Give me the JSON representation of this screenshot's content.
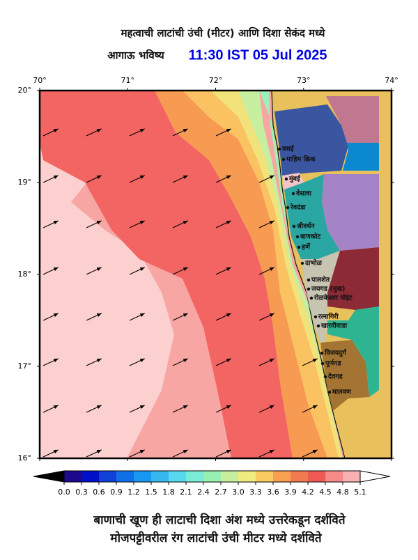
{
  "header": {
    "title": "महत्वाची लाटांची उंची (मीटर) आणि दिशा सेकंद मध्ये",
    "subtitle": "आगाऊ भविष्य",
    "time": "11:30 IST 05 Jul 2025"
  },
  "map": {
    "lon_ticks": [
      {
        "value": 70,
        "label": "70°"
      },
      {
        "value": 71,
        "label": "71°"
      },
      {
        "value": 72,
        "label": "72°"
      },
      {
        "value": 73,
        "label": "73°"
      },
      {
        "value": 74,
        "label": "74°"
      }
    ],
    "lat_ticks": [
      {
        "value": 20,
        "label": "20°"
      },
      {
        "value": 19,
        "label": "19°"
      },
      {
        "value": 18,
        "label": "18°"
      },
      {
        "value": 17,
        "label": "17°"
      },
      {
        "value": 16,
        "label": "16°"
      }
    ],
    "places": [
      "वसई",
      "माहिम क्रिक",
      "मुंबई",
      "वेसावा",
      "रेवदंडा",
      "श्रीवर्धन",
      "बाणकोट",
      "हर्णे",
      "दाभोळ",
      "पालशेत",
      "जयगड (मुख)",
      "रोळकेश्वर पॉइंट",
      "रत्नागिरी",
      "खारवीवाडा",
      "विजयदुर्ग",
      "पूर्णगड",
      "देवगड",
      "मालवण"
    ]
  },
  "colorbar": {
    "ticks": [
      {
        "value": 0,
        "label": "0.0"
      },
      {
        "value": 0.3,
        "label": "0.3"
      },
      {
        "value": 0.6,
        "label": "0.6"
      },
      {
        "value": 0.9,
        "label": "0.9"
      },
      {
        "value": 1.2,
        "label": "1.2"
      },
      {
        "value": 1.5,
        "label": "1.5"
      },
      {
        "value": 1.8,
        "label": "1.8"
      },
      {
        "value": 2.1,
        "label": "2.1"
      },
      {
        "value": 2.4,
        "label": "2.4"
      },
      {
        "value": 2.7,
        "label": "2.7"
      },
      {
        "value": 3.0,
        "label": "3.0"
      },
      {
        "value": 3.3,
        "label": "3.3"
      },
      {
        "value": 3.6,
        "label": "3.6"
      },
      {
        "value": 3.9,
        "label": "3.9"
      },
      {
        "value": 4.2,
        "label": "4.2"
      },
      {
        "value": 4.5,
        "label": "4.5"
      },
      {
        "value": 4.8,
        "label": "4.8"
      },
      {
        "value": 5.1,
        "label": "5.1"
      }
    ],
    "colors": [
      "#1c0a8a",
      "#0010c8",
      "#1040d8",
      "#1070e8",
      "#1898f0",
      "#38b8f0",
      "#58d8f0",
      "#78ecd8",
      "#98f0b0",
      "#c8f09c",
      "#f0ec80",
      "#f8cc60",
      "#f8a050",
      "#f27a50",
      "#f05a55",
      "#f68a88",
      "#f8b0b0"
    ]
  },
  "footer": {
    "line1": "बाणाची खूण ही लाटाची दिशा अंश मध्ये उत्तरेकडून दर्शविते",
    "line2": "मोजपट्टीवरील रंग लाटांची उंची मीटर मध्ये दर्शविते"
  }
}
